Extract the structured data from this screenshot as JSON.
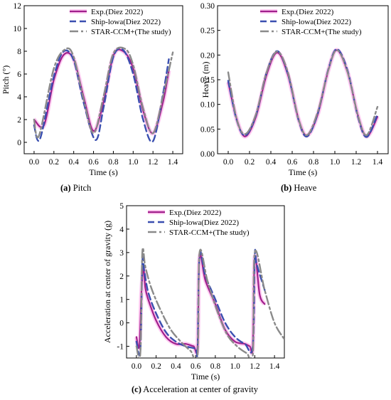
{
  "colors": {
    "exp": "#a0208c",
    "exp_glow": "#ff66d8",
    "ship": "#3a4fb0",
    "star": "#8a8a8a"
  },
  "legend": {
    "exp": "Exp.(Diez 2022)",
    "ship": "Ship-lowa(Diez 2022)",
    "star": "STAR-CCM+(The study)"
  },
  "chart_data": [
    {
      "type": "line",
      "id": "pitch",
      "caption_letter": "(a)",
      "caption_text": " Pitch",
      "xlabel": "Time (s)",
      "ylabel": "Pitch (°)",
      "xlim": [
        -0.1,
        1.5
      ],
      "ylim": [
        -1,
        12
      ],
      "xticks": [
        "0.0",
        "0.2",
        "0.4",
        "0.6",
        "0.8",
        "1.0",
        "1.2",
        "1.4"
      ],
      "yticks": [
        "0",
        "2",
        "4",
        "6",
        "8",
        "10",
        "12"
      ],
      "series": [
        {
          "name": "Exp.(Diez 2022)",
          "x": [
            0.0,
            0.1,
            0.2,
            0.3,
            0.4,
            0.5,
            0.6,
            0.7,
            0.8,
            0.9,
            1.0,
            1.1,
            1.2,
            1.3,
            1.36
          ],
          "values": [
            2.0,
            1.5,
            5.5,
            7.7,
            7.3,
            4.0,
            1.0,
            3.5,
            7.6,
            8.0,
            6.5,
            2.8,
            0.8,
            3.5,
            6.3
          ]
        },
        {
          "name": "Ship-lowa(Diez 2022)",
          "x": [
            0.0,
            0.06,
            0.2,
            0.3,
            0.4,
            0.5,
            0.62,
            0.7,
            0.8,
            0.9,
            1.0,
            1.1,
            1.2,
            1.3,
            1.36
          ],
          "values": [
            1.5,
            0.3,
            5.8,
            8.0,
            7.2,
            3.5,
            0.2,
            3.0,
            7.5,
            8.1,
            6.0,
            2.0,
            0.1,
            4.2,
            7.3
          ]
        },
        {
          "name": "STAR-CCM+(The study)",
          "x": [
            0.0,
            0.05,
            0.2,
            0.32,
            0.4,
            0.5,
            0.6,
            0.7,
            0.8,
            0.92,
            1.0,
            1.1,
            1.2,
            1.3,
            1.4
          ],
          "values": [
            2.0,
            0.6,
            6.5,
            8.2,
            7.5,
            3.8,
            0.8,
            4.0,
            7.8,
            8.2,
            6.8,
            3.0,
            0.8,
            4.0,
            7.9
          ]
        }
      ]
    },
    {
      "type": "line",
      "id": "heave",
      "caption_letter": "(b)",
      "caption_text": " Heave",
      "xlabel": "Time (s)",
      "ylabel": "Heave (m)",
      "xlim": [
        -0.1,
        1.5
      ],
      "ylim": [
        0.0,
        0.3
      ],
      "xticks": [
        "0.0",
        "0.2",
        "0.4",
        "0.6",
        "0.8",
        "1.0",
        "1.2",
        "1.4"
      ],
      "yticks": [
        "0.00",
        "0.05",
        "0.10",
        "0.15",
        "0.20",
        "0.25",
        "0.30"
      ],
      "series": [
        {
          "name": "Exp.(Diez 2022)",
          "x": [
            0.0,
            0.08,
            0.16,
            0.26,
            0.36,
            0.46,
            0.56,
            0.66,
            0.74,
            0.84,
            0.94,
            1.02,
            1.12,
            1.22,
            1.3,
            1.4
          ],
          "values": [
            0.145,
            0.07,
            0.035,
            0.075,
            0.16,
            0.205,
            0.16,
            0.07,
            0.037,
            0.08,
            0.17,
            0.21,
            0.165,
            0.075,
            0.035,
            0.075
          ]
        },
        {
          "name": "Ship-lowa(Diez 2022)",
          "x": [
            0.0,
            0.08,
            0.16,
            0.26,
            0.36,
            0.46,
            0.56,
            0.66,
            0.74,
            0.84,
            0.94,
            1.02,
            1.12,
            1.22,
            1.3,
            1.4
          ],
          "values": [
            0.148,
            0.068,
            0.037,
            0.078,
            0.165,
            0.208,
            0.162,
            0.068,
            0.035,
            0.082,
            0.172,
            0.212,
            0.168,
            0.072,
            0.034,
            0.08
          ]
        },
        {
          "name": "STAR-CCM+(The study)",
          "x": [
            0.0,
            0.08,
            0.16,
            0.26,
            0.36,
            0.46,
            0.56,
            0.66,
            0.74,
            0.84,
            0.94,
            1.02,
            1.12,
            1.22,
            1.3,
            1.4
          ],
          "values": [
            0.165,
            0.07,
            0.04,
            0.08,
            0.165,
            0.207,
            0.165,
            0.07,
            0.038,
            0.085,
            0.17,
            0.21,
            0.165,
            0.075,
            0.038,
            0.095
          ]
        }
      ]
    },
    {
      "type": "line",
      "id": "acceleration",
      "caption_letter": "(c)",
      "caption_text": " Acceleration at center of gravity",
      "xlabel": "Time (s)",
      "ylabel": "Acceleration at center of gravity (g)",
      "xlim": [
        -0.1,
        1.5
      ],
      "ylim": [
        -1.5,
        5
      ],
      "xticks": [
        "0.0",
        "0.2",
        "0.4",
        "0.6",
        "0.8",
        "1.0",
        "1.2",
        "1.4"
      ],
      "yticks": [
        "-1",
        "0",
        "1",
        "2",
        "3",
        "4",
        "5"
      ],
      "series": [
        {
          "name": "Exp.(Diez 2022)",
          "x": [
            0.0,
            0.03,
            0.05,
            0.07,
            0.09,
            0.12,
            0.2,
            0.3,
            0.4,
            0.5,
            0.58,
            0.62,
            0.64,
            0.7,
            0.8,
            0.9,
            1.0,
            1.1,
            1.15,
            1.18,
            1.2,
            1.25,
            1.3
          ],
          "values": [
            -0.6,
            -1.0,
            1.2,
            2.4,
            1.5,
            1.0,
            0.1,
            -0.6,
            -0.9,
            -0.9,
            -1.0,
            -1.0,
            2.8,
            1.8,
            0.8,
            -0.3,
            -0.8,
            -0.9,
            -1.0,
            -1.0,
            2.8,
            1.2,
            0.8
          ]
        },
        {
          "name": "Ship-lowa(Diez 2022)",
          "x": [
            0.0,
            0.04,
            0.06,
            0.08,
            0.12,
            0.2,
            0.3,
            0.4,
            0.5,
            0.6,
            0.62,
            0.64,
            0.7,
            0.8,
            0.9,
            1.0,
            1.1,
            1.18,
            1.2,
            1.22,
            1.3
          ],
          "values": [
            -0.8,
            -1.2,
            2.6,
            2.2,
            1.3,
            0.4,
            -0.4,
            -0.8,
            -1.0,
            -1.1,
            -1.2,
            2.9,
            2.0,
            1.0,
            0.0,
            -0.6,
            -0.9,
            -1.0,
            2.9,
            2.5,
            1.4
          ]
        },
        {
          "name": "STAR-CCM+(The study)",
          "x": [
            0.0,
            0.04,
            0.06,
            0.09,
            0.15,
            0.25,
            0.35,
            0.45,
            0.55,
            0.62,
            0.64,
            0.72,
            0.82,
            0.92,
            1.02,
            1.12,
            1.18,
            1.2,
            1.3,
            1.4,
            1.5
          ],
          "values": [
            -1.0,
            -1.3,
            3.0,
            2.4,
            1.5,
            0.5,
            -0.3,
            -0.8,
            -1.2,
            -1.4,
            3.0,
            1.8,
            0.5,
            -0.5,
            -1.0,
            -1.3,
            -1.4,
            3.0,
            1.4,
            0.0,
            -0.7
          ]
        }
      ]
    }
  ]
}
